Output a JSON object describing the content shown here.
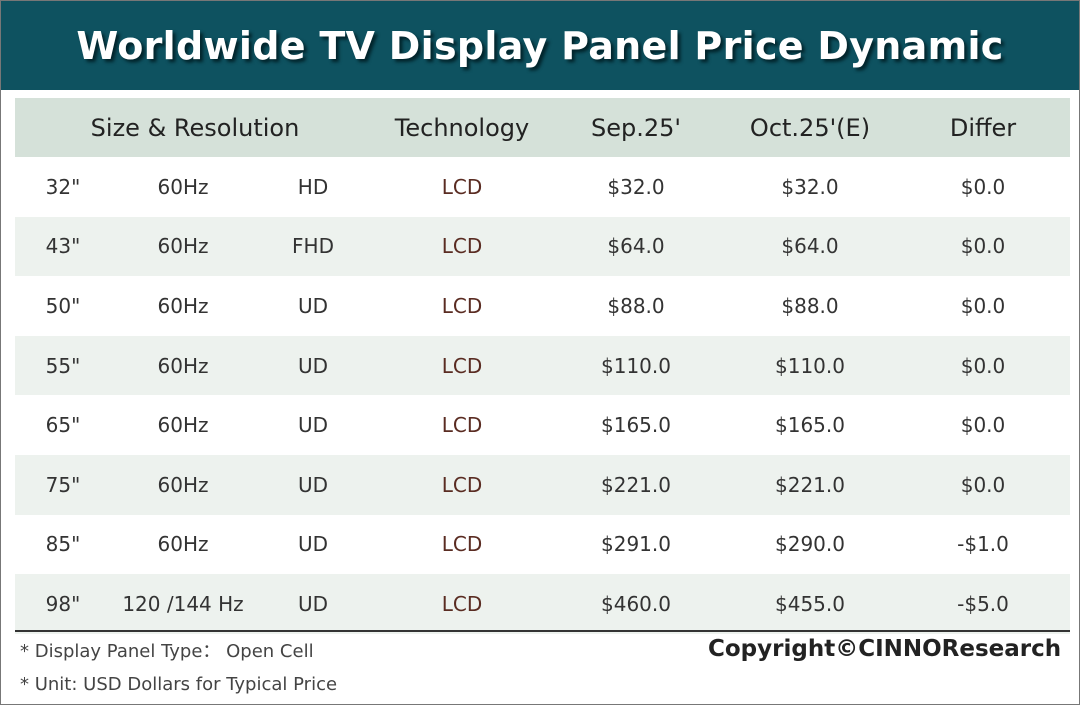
{
  "title": "Worldwide TV Display Panel Price Dynamic",
  "headers": {
    "size_resolution": "Size & Resolution",
    "technology": "Technology",
    "sep": "Sep.25'",
    "oct": "Oct.25'(E)",
    "differ": "Differ"
  },
  "rows": [
    {
      "size": "32\"",
      "refresh": "60Hz",
      "res": "HD",
      "tech": "LCD",
      "sep": "$32.0",
      "oct": "$32.0",
      "differ": "$0.0"
    },
    {
      "size": "43\"",
      "refresh": "60Hz",
      "res": "FHD",
      "tech": "LCD",
      "sep": "$64.0",
      "oct": "$64.0",
      "differ": "$0.0"
    },
    {
      "size": "50\"",
      "refresh": "60Hz",
      "res": "UD",
      "tech": "LCD",
      "sep": "$88.0",
      "oct": "$88.0",
      "differ": "$0.0"
    },
    {
      "size": "55\"",
      "refresh": "60Hz",
      "res": "UD",
      "tech": "LCD",
      "sep": "$110.0",
      "oct": "$110.0",
      "differ": "$0.0"
    },
    {
      "size": "65\"",
      "refresh": "60Hz",
      "res": "UD",
      "tech": "LCD",
      "sep": "$165.0",
      "oct": "$165.0",
      "differ": "$0.0"
    },
    {
      "size": "75\"",
      "refresh": "60Hz",
      "res": "UD",
      "tech": "LCD",
      "sep": "$221.0",
      "oct": "$221.0",
      "differ": "$0.0"
    },
    {
      "size": "85\"",
      "refresh": "60Hz",
      "res": "UD",
      "tech": "LCD",
      "sep": "$291.0",
      "oct": "$290.0",
      "differ": "-$1.0"
    },
    {
      "size": "98\"",
      "refresh": "120 /144 Hz",
      "res": "UD",
      "tech": "LCD",
      "sep": "$460.0",
      "oct": "$455.0",
      "differ": "-$5.0"
    }
  ],
  "notes": {
    "panel_type": "* Display Panel Type： Open Cell",
    "unit": "* Unit:  USD Dollars for Typical Price"
  },
  "copyright": "Copyright©CINNOResearch"
}
